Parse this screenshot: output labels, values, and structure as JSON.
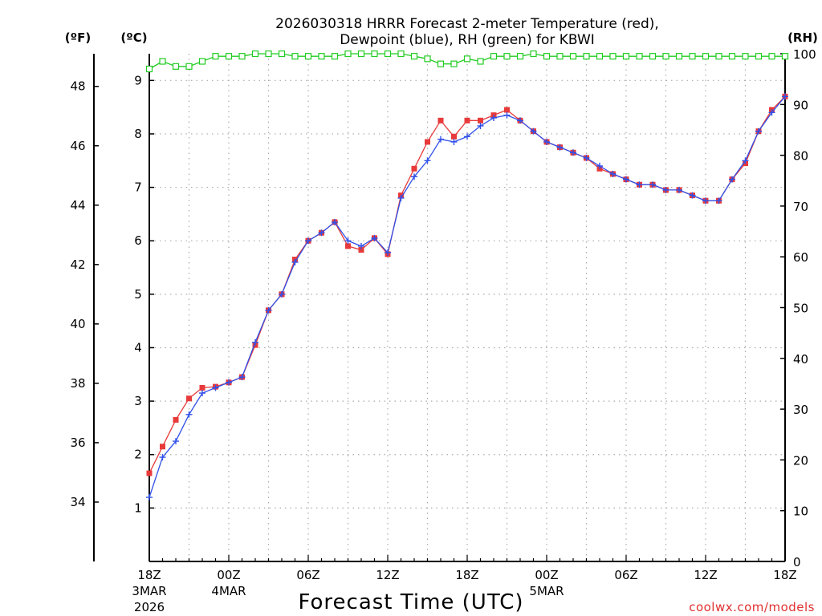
{
  "chart_data": {
    "type": "line",
    "title_line1": "2026030318 HRRR Forecast 2-meter Temperature (red),",
    "title_line2": "Dewpoint (blue), RH (green) for KBWI",
    "xlabel": "Forecast Time (UTC)",
    "credit": "coolwx.com/models",
    "units": {
      "fahrenheit": "(ºF)",
      "celsius": "(ºC)",
      "rh": "(RH)"
    },
    "celsius_axis": {
      "range": [
        0,
        9.5
      ],
      "ticks": [
        1,
        2,
        3,
        4,
        5,
        6,
        7,
        8,
        9
      ]
    },
    "fahrenheit_axis": {
      "ticks": [
        34,
        36,
        38,
        40,
        42,
        44,
        46,
        48
      ]
    },
    "rh_axis": {
      "range": [
        0,
        100
      ],
      "ticks": [
        0,
        10,
        20,
        30,
        40,
        50,
        60,
        70,
        80,
        90,
        100
      ]
    },
    "x_axis": {
      "range_hours": [
        0,
        48
      ],
      "ticks": [
        {
          "hour": 0,
          "label": "18Z",
          "sub1": "3MAR",
          "sub2": "2026"
        },
        {
          "hour": 6,
          "label": "00Z",
          "sub1": "4MAR",
          "sub2": ""
        },
        {
          "hour": 12,
          "label": "06Z",
          "sub1": "",
          "sub2": ""
        },
        {
          "hour": 18,
          "label": "12Z",
          "sub1": "",
          "sub2": ""
        },
        {
          "hour": 24,
          "label": "18Z",
          "sub1": "",
          "sub2": ""
        },
        {
          "hour": 30,
          "label": "00Z",
          "sub1": "5MAR",
          "sub2": ""
        },
        {
          "hour": 36,
          "label": "06Z",
          "sub1": "",
          "sub2": ""
        },
        {
          "hour": 42,
          "label": "12Z",
          "sub1": "",
          "sub2": ""
        },
        {
          "hour": 48,
          "label": "18Z",
          "sub1": "",
          "sub2": ""
        }
      ]
    },
    "series": [
      {
        "name": "Temperature",
        "unit": "C",
        "color": "#e83a3a",
        "values": [
          1.65,
          2.15,
          2.65,
          3.05,
          3.25,
          3.27,
          3.35,
          3.45,
          4.05,
          4.7,
          5.0,
          5.65,
          6.0,
          6.15,
          6.35,
          5.9,
          5.83,
          6.05,
          5.75,
          6.85,
          7.35,
          7.85,
          8.25,
          7.95,
          8.25,
          8.25,
          8.35,
          8.45,
          8.25,
          8.05,
          7.85,
          7.75,
          7.65,
          7.55,
          7.35,
          7.25,
          7.15,
          7.05,
          7.05,
          6.95,
          6.95,
          6.85,
          6.75,
          6.75,
          7.15,
          7.45,
          8.05,
          8.45,
          8.7
        ]
      },
      {
        "name": "Dewpoint",
        "unit": "C",
        "color": "#3050e8",
        "values": [
          1.2,
          1.95,
          2.25,
          2.75,
          3.15,
          3.25,
          3.35,
          3.45,
          4.1,
          4.7,
          5.0,
          5.6,
          6.0,
          6.15,
          6.35,
          6.0,
          5.9,
          6.05,
          5.78,
          6.8,
          7.2,
          7.5,
          7.9,
          7.85,
          7.95,
          8.15,
          8.3,
          8.35,
          8.25,
          8.05,
          7.85,
          7.75,
          7.65,
          7.55,
          7.4,
          7.25,
          7.15,
          7.05,
          7.05,
          6.95,
          6.95,
          6.85,
          6.75,
          6.75,
          7.15,
          7.5,
          8.05,
          8.4,
          8.7
        ]
      },
      {
        "name": "Relative Humidity",
        "unit": "%",
        "color": "#22cc22",
        "values": [
          97,
          98.5,
          97.5,
          97.5,
          98.5,
          99.5,
          99.5,
          99.5,
          100,
          100,
          100,
          99.5,
          99.5,
          99.5,
          99.5,
          100,
          100,
          100,
          100,
          100,
          99.5,
          99,
          98,
          98,
          99,
          98.5,
          99.5,
          99.5,
          99.5,
          100,
          99.5,
          99.5,
          99.5,
          99.5,
          99.5,
          99.5,
          99.5,
          99.5,
          99.5,
          99.5,
          99.5,
          99.5,
          99.5,
          99.5,
          99.5,
          99.5,
          99.5,
          99.5,
          99.5
        ]
      }
    ]
  }
}
